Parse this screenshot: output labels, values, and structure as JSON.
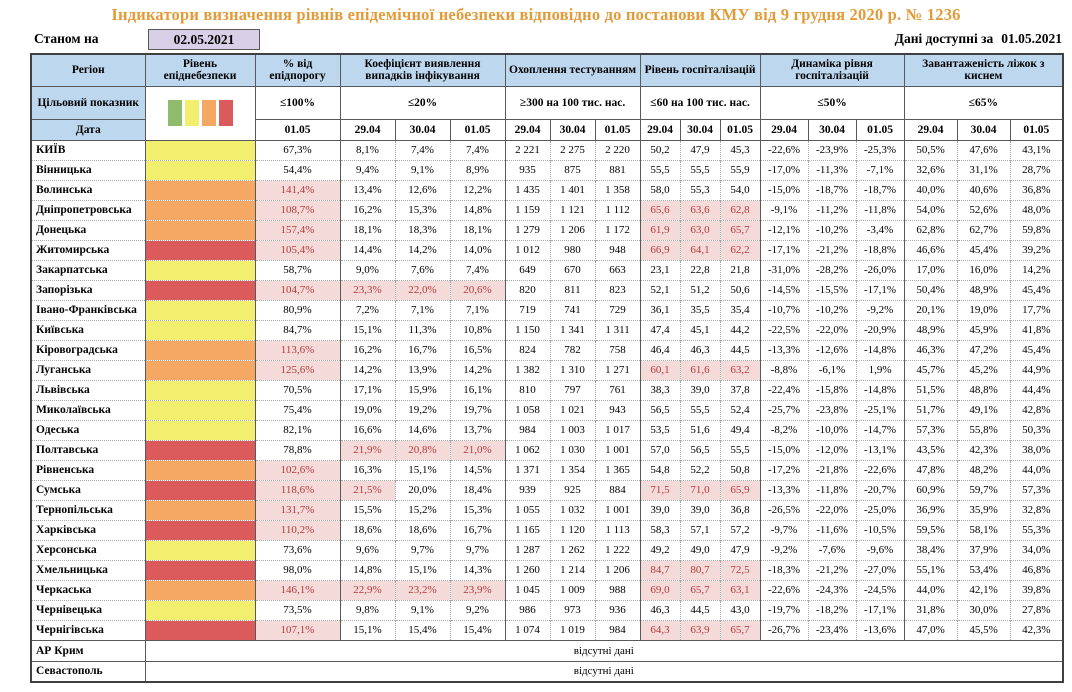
{
  "title": "Індикатори визначення рівнів епідемічної небезпеки відповідно до постанови КМУ від 9 грудня 2020 р. № 1236",
  "as_of": {
    "label": "Станом на",
    "date": "02.05.2021"
  },
  "available": {
    "label": "Дані доступні за",
    "date": "01.05.2021"
  },
  "colors": {
    "header_bg": "#BDD7EE",
    "title_text": "#E39A38",
    "date_box_bg": "#D7D0E6",
    "highlight_bg": "#F5DADA",
    "highlight_text": "#B23C3C",
    "levels": {
      "yellow": "#F2EE6E",
      "orange": "#F4A864",
      "red": "#DB5A5C"
    }
  },
  "header": {
    "region": "Регіон",
    "target_label": "Цільовий показник",
    "date_label": "Дата",
    "legend_colors": [
      "#8FBB6F",
      "#F2EE6E",
      "#F4A864",
      "#DB5A5C"
    ],
    "groups": [
      {
        "name": "Рівень епіднебезпеки",
        "target": "",
        "dates": []
      },
      {
        "name": "% від епідпорогу",
        "target": "≤100%",
        "dates": [
          "01.05"
        ]
      },
      {
        "name": "Коефіцієнт виявлення випадків інфікування",
        "target": "≤20%",
        "dates": [
          "29.04",
          "30.04",
          "01.05"
        ]
      },
      {
        "name": "Охоплення тестуванням",
        "target": "≥300 на 100 тис. нас.",
        "dates": [
          "29.04",
          "30.04",
          "01.05"
        ]
      },
      {
        "name": "Рівень госпіталізацій",
        "target": "≤60 на 100 тис. нас.",
        "dates": [
          "29.04",
          "30.04",
          "01.05"
        ]
      },
      {
        "name": "Динаміка рівня госпіталізацій",
        "target": "≤50%",
        "dates": [
          "29.04",
          "30.04",
          "01.05"
        ]
      },
      {
        "name": "Завантаженість ліжок з киснем",
        "target": "≤65%",
        "dates": [
          "29.04",
          "30.04",
          "01.05"
        ]
      }
    ]
  },
  "rows": [
    {
      "region": "КИЇВ",
      "level": "yellow",
      "values": [
        "67,3%",
        "8,1%",
        "7,4%",
        "7,4%",
        "2 221",
        "2 275",
        "2 220",
        "50,2",
        "47,9",
        "45,3",
        "-22,6%",
        "-23,9%",
        "-25,3%",
        "50,5%",
        "47,6%",
        "43,1%"
      ],
      "hl": []
    },
    {
      "region": "Вінницька",
      "level": "yellow",
      "values": [
        "54,4%",
        "9,4%",
        "9,1%",
        "8,9%",
        "935",
        "875",
        "881",
        "55,5",
        "55,5",
        "55,9",
        "-17,0%",
        "-11,3%",
        "-7,1%",
        "32,6%",
        "31,1%",
        "28,7%"
      ],
      "hl": []
    },
    {
      "region": "Волинська",
      "level": "orange",
      "values": [
        "141,4%",
        "13,4%",
        "12,6%",
        "12,2%",
        "1 435",
        "1 401",
        "1 358",
        "58,0",
        "55,3",
        "54,0",
        "-15,0%",
        "-18,7%",
        "-18,7%",
        "40,0%",
        "40,6%",
        "36,8%"
      ],
      "hl": [
        0
      ]
    },
    {
      "region": "Дніпропетровська",
      "level": "orange",
      "values": [
        "108,7%",
        "16,2%",
        "15,3%",
        "14,8%",
        "1 159",
        "1 121",
        "1 112",
        "65,6",
        "63,6",
        "62,8",
        "-9,1%",
        "-11,2%",
        "-11,8%",
        "54,0%",
        "52,6%",
        "48,0%"
      ],
      "hl": [
        0,
        7,
        8,
        9
      ]
    },
    {
      "region": "Донецька",
      "level": "orange",
      "values": [
        "157,4%",
        "18,1%",
        "18,3%",
        "18,1%",
        "1 279",
        "1 206",
        "1 172",
        "61,9",
        "63,0",
        "65,7",
        "-12,1%",
        "-10,2%",
        "-3,4%",
        "62,8%",
        "62,7%",
        "59,8%"
      ],
      "hl": [
        0,
        7,
        8,
        9
      ]
    },
    {
      "region": "Житомирська",
      "level": "red",
      "values": [
        "105,4%",
        "14,4%",
        "14,2%",
        "14,0%",
        "1 012",
        "980",
        "948",
        "66,9",
        "64,1",
        "62,2",
        "-17,1%",
        "-21,2%",
        "-18,8%",
        "46,6%",
        "45,4%",
        "39,2%"
      ],
      "hl": [
        0,
        7,
        8,
        9
      ]
    },
    {
      "region": "Закарпатська",
      "level": "yellow",
      "values": [
        "58,7%",
        "9,0%",
        "7,6%",
        "7,4%",
        "649",
        "670",
        "663",
        "23,1",
        "22,8",
        "21,8",
        "-31,0%",
        "-28,2%",
        "-26,0%",
        "17,0%",
        "16,0%",
        "14,2%"
      ],
      "hl": []
    },
    {
      "region": "Запорізька",
      "level": "red",
      "values": [
        "104,7%",
        "23,3%",
        "22,0%",
        "20,6%",
        "820",
        "811",
        "823",
        "52,1",
        "51,2",
        "50,6",
        "-14,5%",
        "-15,5%",
        "-17,1%",
        "50,4%",
        "48,9%",
        "45,4%"
      ],
      "hl": [
        0,
        1,
        2,
        3
      ]
    },
    {
      "region": "Івано-Франківська",
      "level": "yellow",
      "values": [
        "80,9%",
        "7,2%",
        "7,1%",
        "7,1%",
        "719",
        "741",
        "729",
        "36,1",
        "35,5",
        "35,4",
        "-10,7%",
        "-10,2%",
        "-9,2%",
        "20,1%",
        "19,0%",
        "17,7%"
      ],
      "hl": []
    },
    {
      "region": "Київська",
      "level": "yellow",
      "values": [
        "84,7%",
        "15,1%",
        "11,3%",
        "10,8%",
        "1 150",
        "1 341",
        "1 311",
        "47,4",
        "45,1",
        "44,2",
        "-22,5%",
        "-22,0%",
        "-20,9%",
        "48,9%",
        "45,9%",
        "41,8%"
      ],
      "hl": []
    },
    {
      "region": "Кіровоградська",
      "level": "orange",
      "values": [
        "113,6%",
        "16,2%",
        "16,7%",
        "16,5%",
        "824",
        "782",
        "758",
        "46,4",
        "46,3",
        "44,5",
        "-13,3%",
        "-12,6%",
        "-14,8%",
        "46,3%",
        "47,2%",
        "45,4%"
      ],
      "hl": [
        0
      ]
    },
    {
      "region": "Луганська",
      "level": "orange",
      "values": [
        "125,6%",
        "14,2%",
        "13,9%",
        "14,2%",
        "1 382",
        "1 310",
        "1 271",
        "60,1",
        "61,6",
        "63,2",
        "-8,8%",
        "-6,1%",
        "1,9%",
        "45,7%",
        "45,2%",
        "44,9%"
      ],
      "hl": [
        0,
        7,
        8,
        9
      ]
    },
    {
      "region": "Львівська",
      "level": "yellow",
      "values": [
        "70,5%",
        "17,1%",
        "15,9%",
        "16,1%",
        "810",
        "797",
        "761",
        "38,3",
        "39,0",
        "37,8",
        "-22,4%",
        "-15,8%",
        "-14,8%",
        "51,5%",
        "48,8%",
        "44,4%"
      ],
      "hl": []
    },
    {
      "region": "Миколаївська",
      "level": "yellow",
      "values": [
        "75,4%",
        "19,0%",
        "19,2%",
        "19,7%",
        "1 058",
        "1 021",
        "943",
        "56,5",
        "55,5",
        "52,4",
        "-25,7%",
        "-23,8%",
        "-25,1%",
        "51,7%",
        "49,1%",
        "42,8%"
      ],
      "hl": []
    },
    {
      "region": "Одеська",
      "level": "yellow",
      "values": [
        "82,1%",
        "16,6%",
        "14,6%",
        "13,7%",
        "984",
        "1 003",
        "1 017",
        "53,5",
        "51,6",
        "49,4",
        "-8,2%",
        "-10,0%",
        "-14,7%",
        "57,3%",
        "55,8%",
        "50,3%"
      ],
      "hl": []
    },
    {
      "region": "Полтавська",
      "level": "red",
      "values": [
        "78,8%",
        "21,9%",
        "20,8%",
        "21,0%",
        "1 062",
        "1 030",
        "1 001",
        "57,0",
        "56,5",
        "55,5",
        "-15,0%",
        "-12,0%",
        "-13,1%",
        "43,5%",
        "42,3%",
        "38,0%"
      ],
      "hl": [
        1,
        2,
        3
      ]
    },
    {
      "region": "Рівненська",
      "level": "orange",
      "values": [
        "102,6%",
        "16,3%",
        "15,1%",
        "14,5%",
        "1 371",
        "1 354",
        "1 365",
        "54,8",
        "52,2",
        "50,8",
        "-17,2%",
        "-21,8%",
        "-22,6%",
        "47,8%",
        "48,2%",
        "44,0%"
      ],
      "hl": [
        0
      ]
    },
    {
      "region": "Сумська",
      "level": "red",
      "values": [
        "118,6%",
        "21,5%",
        "20,0%",
        "18,4%",
        "939",
        "925",
        "884",
        "71,5",
        "71,0",
        "65,9",
        "-13,3%",
        "-11,8%",
        "-20,7%",
        "60,9%",
        "59,7%",
        "57,3%"
      ],
      "hl": [
        0,
        1,
        7,
        8,
        9
      ]
    },
    {
      "region": "Тернопільська",
      "level": "orange",
      "values": [
        "131,7%",
        "15,5%",
        "15,2%",
        "15,3%",
        "1 055",
        "1 032",
        "1 001",
        "39,0",
        "39,0",
        "36,8",
        "-26,5%",
        "-22,0%",
        "-25,0%",
        "36,9%",
        "35,9%",
        "32,8%"
      ],
      "hl": [
        0
      ]
    },
    {
      "region": "Харківська",
      "level": "red",
      "values": [
        "110,2%",
        "18,6%",
        "18,6%",
        "16,7%",
        "1 165",
        "1 120",
        "1 113",
        "58,3",
        "57,1",
        "57,2",
        "-9,7%",
        "-11,6%",
        "-10,5%",
        "59,5%",
        "58,1%",
        "55,3%"
      ],
      "hl": [
        0
      ]
    },
    {
      "region": "Херсонська",
      "level": "yellow",
      "values": [
        "73,6%",
        "9,6%",
        "9,7%",
        "9,7%",
        "1 287",
        "1 262",
        "1 222",
        "49,2",
        "49,0",
        "47,9",
        "-9,2%",
        "-7,6%",
        "-9,6%",
        "38,4%",
        "37,9%",
        "34,0%"
      ],
      "hl": []
    },
    {
      "region": "Хмельницька",
      "level": "red",
      "values": [
        "98,0%",
        "14,8%",
        "15,1%",
        "14,3%",
        "1 260",
        "1 214",
        "1 206",
        "84,7",
        "80,7",
        "72,5",
        "-18,3%",
        "-21,2%",
        "-27,0%",
        "55,1%",
        "53,4%",
        "46,8%"
      ],
      "hl": [
        7,
        8,
        9
      ]
    },
    {
      "region": "Черкаська",
      "level": "orange",
      "values": [
        "146,1%",
        "22,9%",
        "23,2%",
        "23,9%",
        "1 045",
        "1 009",
        "988",
        "69,0",
        "65,7",
        "63,1",
        "-22,6%",
        "-24,3%",
        "-24,5%",
        "44,0%",
        "42,1%",
        "39,8%"
      ],
      "hl": [
        0,
        1,
        2,
        3,
        7,
        8,
        9
      ]
    },
    {
      "region": "Чернівецька",
      "level": "yellow",
      "values": [
        "73,5%",
        "9,8%",
        "9,1%",
        "9,2%",
        "986",
        "973",
        "936",
        "46,3",
        "44,5",
        "43,0",
        "-19,7%",
        "-18,2%",
        "-17,1%",
        "31,8%",
        "30,0%",
        "27,8%"
      ],
      "hl": []
    },
    {
      "region": "Чернігівська",
      "level": "red",
      "values": [
        "107,1%",
        "15,1%",
        "15,4%",
        "15,4%",
        "1 074",
        "1 019",
        "984",
        "64,3",
        "63,9",
        "65,7",
        "-26,7%",
        "-23,4%",
        "-13,6%",
        "47,0%",
        "45,5%",
        "42,3%"
      ],
      "hl": [
        0,
        7,
        8,
        9
      ]
    }
  ],
  "no_data_rows": [
    {
      "region": "АР Крим",
      "text": "відсутні дані"
    },
    {
      "region": "Севастополь",
      "text": "відсутні дані"
    }
  ]
}
